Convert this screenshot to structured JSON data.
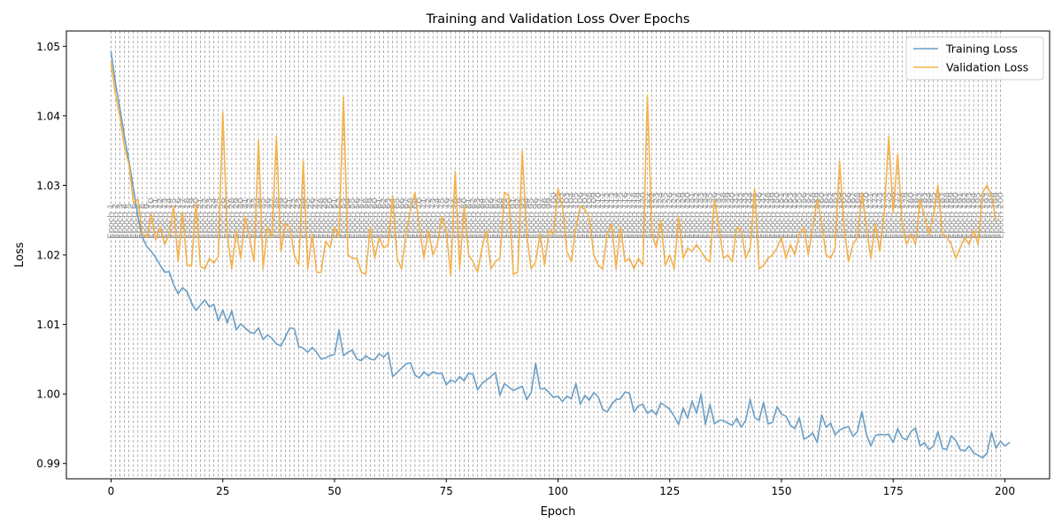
{
  "chart_data": {
    "type": "line",
    "title": "Training and Validation Loss Over Epochs",
    "xlabel": "Epoch",
    "ylabel": "Loss",
    "xlim": [
      -10,
      210
    ],
    "ylim": [
      0.9878,
      1.0522
    ],
    "xticks": [
      0,
      25,
      50,
      75,
      100,
      125,
      150,
      175,
      200
    ],
    "xtick_labels": [
      "0",
      "25",
      "50",
      "75",
      "100",
      "125",
      "150",
      "175",
      "200"
    ],
    "yticks": [
      0.99,
      1.0,
      1.01,
      1.02,
      1.03,
      1.04,
      1.05
    ],
    "ytick_labels": [
      "0.99",
      "1.00",
      "1.01",
      "1.02",
      "1.03",
      "1.04",
      "1.05"
    ],
    "grid": false,
    "legend_position": "upper right",
    "epoch_marker_label_prefix": "Epoch",
    "epoch_markers": {
      "start": 1,
      "end": 200,
      "step": 1
    },
    "series": [
      {
        "name": "Training Loss",
        "color": "#6a9ec5",
        "x_start": 0,
        "values": [
          1.0492,
          1.0446,
          1.041,
          1.037,
          1.0335,
          1.0296,
          1.0255,
          1.0225,
          1.0212,
          1.0205,
          1.0196,
          1.0185,
          1.0175,
          1.0176,
          1.0157,
          1.0144,
          1.0153,
          1.0147,
          1.0131,
          1.012,
          1.0128,
          1.0135,
          1.0125,
          1.0129,
          1.0105,
          1.0121,
          1.0102,
          1.012,
          1.0092,
          1.0101,
          1.0095,
          1.0089,
          1.0087,
          1.0095,
          1.0078,
          1.0085,
          1.008,
          1.0072,
          1.0069,
          1.0082,
          1.0095,
          1.0094,
          1.0068,
          1.0066,
          1.006,
          1.0067,
          1.006,
          1.005,
          1.0052,
          1.0055,
          1.0057,
          1.0092,
          1.0055,
          1.006,
          1.0063,
          1.005,
          1.0048,
          1.0055,
          1.005,
          1.0049,
          1.0058,
          1.0053,
          1.006,
          1.0025,
          1.0031,
          1.0037,
          1.0043,
          1.0045,
          1.0027,
          1.0023,
          1.0032,
          1.0026,
          1.0032,
          1.0029,
          1.003,
          1.0013,
          1.002,
          1.0017,
          1.0025,
          1.0019,
          1.003,
          1.0028,
          1.0006,
          1.0015,
          1.002,
          1.0025,
          1.0031,
          0.9998,
          1.0015,
          1.001,
          1.0005,
          1.0008,
          1.0011,
          0.9992,
          1.0002,
          1.0044,
          1.0007,
          1.0008,
          1.0002,
          0.9995,
          0.9997,
          0.9989,
          0.9997,
          0.9993,
          1.0015,
          0.9985,
          0.9998,
          0.9991,
          1.0002,
          0.9996,
          0.9978,
          0.9974,
          0.9985,
          0.9992,
          0.9993,
          1.0003,
          1.0001,
          0.9974,
          0.9983,
          0.9985,
          0.9972,
          0.9977,
          0.997,
          0.9987,
          0.9983,
          0.9978,
          0.9968,
          0.9956,
          0.998,
          0.9965,
          0.999,
          0.9972,
          1.0,
          0.9956,
          0.9985,
          0.9957,
          0.9962,
          0.9962,
          0.9958,
          0.9955,
          0.9965,
          0.9952,
          0.9962,
          0.9992,
          0.9966,
          0.9962,
          0.9988,
          0.9957,
          0.9959,
          0.9982,
          0.9971,
          0.9968,
          0.9955,
          0.995,
          0.9966,
          0.9935,
          0.9938,
          0.9944,
          0.993,
          0.997,
          0.9952,
          0.9958,
          0.9941,
          0.9948,
          0.9951,
          0.9953,
          0.9939,
          0.9946,
          0.9975,
          0.9942,
          0.9925,
          0.994,
          0.9942,
          0.9941,
          0.9942,
          0.993,
          0.995,
          0.9937,
          0.9934,
          0.9946,
          0.9951,
          0.9925,
          0.993,
          0.992,
          0.9925,
          0.9946,
          0.9922,
          0.992,
          0.994,
          0.9933,
          0.992,
          0.9918,
          0.9925,
          0.9915,
          0.9912,
          0.9908,
          0.9915,
          0.9945,
          0.9922,
          0.9932,
          0.9925,
          0.993
        ]
      },
      {
        "name": "Validation Loss",
        "color": "#f5b04a",
        "x_start": 0,
        "values": [
          1.0475,
          1.043,
          1.0398,
          1.0355,
          1.033,
          1.0275,
          1.028,
          1.023,
          1.0225,
          1.0258,
          1.0222,
          1.024,
          1.0215,
          1.023,
          1.027,
          1.019,
          1.0262,
          1.0185,
          1.0185,
          1.0275,
          1.0183,
          1.018,
          1.0195,
          1.0188,
          1.0198,
          1.0405,
          1.023,
          1.018,
          1.0235,
          1.0195,
          1.0255,
          1.0225,
          1.019,
          1.0365,
          1.018,
          1.024,
          1.0225,
          1.037,
          1.0205,
          1.0245,
          1.024,
          1.02,
          1.0185,
          1.0335,
          1.018,
          1.023,
          1.0175,
          1.0175,
          1.022,
          1.021,
          1.024,
          1.0225,
          1.0428,
          1.02,
          1.0195,
          1.0195,
          1.0175,
          1.0172,
          1.024,
          1.0195,
          1.0225,
          1.021,
          1.0215,
          1.0285,
          1.0195,
          1.018,
          1.023,
          1.0265,
          1.029,
          1.024,
          1.0195,
          1.0235,
          1.02,
          1.0215,
          1.0255,
          1.0235,
          1.017,
          1.032,
          1.018,
          1.027,
          1.02,
          1.019,
          1.0175,
          1.021,
          1.0235,
          1.018,
          1.019,
          1.0195,
          1.029,
          1.0285,
          1.0172,
          1.0175,
          1.035,
          1.023,
          1.018,
          1.019,
          1.023,
          1.0185,
          1.0235,
          1.023,
          1.0295,
          1.027,
          1.0205,
          1.019,
          1.024,
          1.027,
          1.0265,
          1.0255,
          1.02,
          1.0185,
          1.018,
          1.023,
          1.0245,
          1.018,
          1.024,
          1.019,
          1.0195,
          1.018,
          1.0195,
          1.0185,
          1.043,
          1.023,
          1.021,
          1.025,
          1.0185,
          1.02,
          1.018,
          1.0255,
          1.0195,
          1.021,
          1.0205,
          1.0215,
          1.0205,
          1.0195,
          1.019,
          1.028,
          1.024,
          1.0195,
          1.02,
          1.019,
          1.024,
          1.0235,
          1.0195,
          1.021,
          1.0295,
          1.018,
          1.0185,
          1.0195,
          1.02,
          1.021,
          1.0225,
          1.0195,
          1.0215,
          1.02,
          1.023,
          1.024,
          1.02,
          1.024,
          1.028,
          1.0245,
          1.02,
          1.0195,
          1.021,
          1.0335,
          1.024,
          1.019,
          1.0215,
          1.0225,
          1.029,
          1.024,
          1.0195,
          1.0245,
          1.0205,
          1.026,
          1.037,
          1.026,
          1.0345,
          1.0245,
          1.0215,
          1.023,
          1.0215,
          1.028,
          1.0255,
          1.023,
          1.0255,
          1.03,
          1.023,
          1.0225,
          1.0215,
          1.0195,
          1.021,
          1.0225,
          1.0215,
          1.0235,
          1.0215,
          1.029,
          1.03,
          1.0285,
          1.025
        ]
      }
    ]
  }
}
